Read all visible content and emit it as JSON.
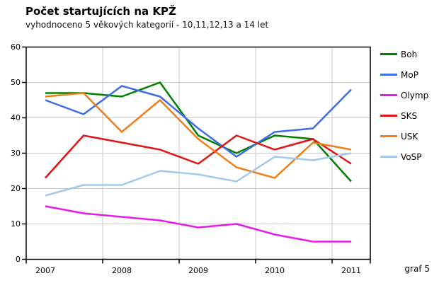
{
  "title": "Počet startujících na KPŽ",
  "subtitle": "vyhodnoceno 5 věkových kategorií - 10,11,12,13 a 14 let",
  "footnote": "graf 5",
  "chart_data": {
    "type": "line",
    "title": "Počet startujících na KPŽ",
    "subtitle": "vyhodnoceno 5 věkových kategorií - 10,11,12,13 a 14 let",
    "x_tick_labels": [
      "2007",
      "2008",
      "2009",
      "2010",
      "2011"
    ],
    "num_points": 9,
    "points_per_labeled_year": 2,
    "ylim": [
      0,
      60
    ],
    "y_ticks": [
      0,
      10,
      20,
      30,
      40,
      50,
      60
    ],
    "grid": true,
    "legend_position": "right",
    "grid_color": "#c9c9c9",
    "frame_color": "#000000",
    "series": [
      {
        "name": "Boh",
        "color": "#008000",
        "values": [
          47,
          47,
          46,
          50,
          35,
          30,
          35,
          34,
          22
        ]
      },
      {
        "name": "MoP",
        "color": "#3D6CE5",
        "values": [
          45,
          41,
          49,
          46,
          37,
          29,
          36,
          37,
          48
        ]
      },
      {
        "name": "Olymp",
        "color": "#E61AE6",
        "values": [
          15,
          13,
          12,
          11,
          9,
          10,
          7,
          5,
          5
        ]
      },
      {
        "name": "SKS",
        "color": "#E01414",
        "values": [
          23,
          35,
          33,
          31,
          27,
          35,
          31,
          34,
          27
        ]
      },
      {
        "name": "USK",
        "color": "#EF7D1A",
        "values": [
          46,
          47,
          36,
          45,
          34,
          26,
          23,
          33,
          31
        ]
      },
      {
        "name": "VoSP",
        "color": "#A3C9EA",
        "values": [
          18,
          21,
          21,
          25,
          24,
          22,
          29,
          28,
          30
        ]
      }
    ]
  }
}
